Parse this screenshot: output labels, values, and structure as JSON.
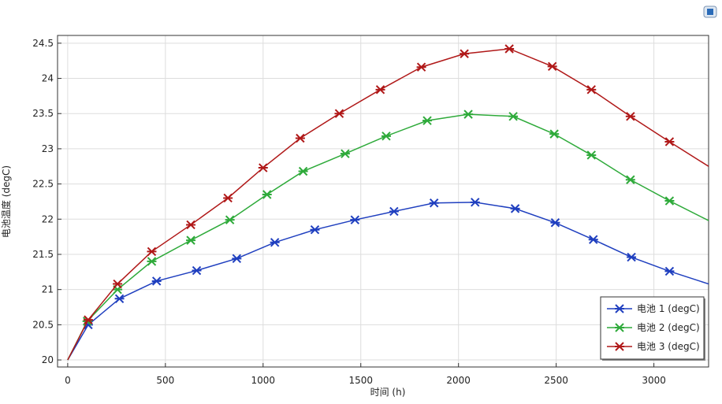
{
  "chart_data": {
    "type": "line",
    "x_label": "时间 (h)",
    "y_label": "电池温度 (degC)",
    "xlim": [
      -52,
      3280
    ],
    "ylim": [
      19.9,
      24.61
    ],
    "xticks": [
      0,
      500,
      1000,
      1500,
      2000,
      2500,
      3000
    ],
    "yticks": [
      20,
      20.5,
      21,
      21.5,
      22,
      22.5,
      23,
      23.5,
      24,
      24.5
    ],
    "grid": true,
    "legend": "lower right",
    "series": [
      {
        "name": "电池 1 (degC)",
        "color": "#1f3fbf",
        "x": [
          0,
          105,
          265,
          455,
          660,
          865,
          1060,
          1265,
          1470,
          1670,
          1875,
          2085,
          2290,
          2495,
          2690,
          2885,
          3080,
          3280
        ],
        "values": [
          20,
          20.5,
          20.87,
          21.12,
          21.27,
          21.44,
          21.67,
          21.85,
          21.99,
          22.11,
          22.23,
          22.24,
          22.15,
          21.95,
          21.71,
          21.46,
          21.26,
          21.08
        ]
      },
      {
        "name": "电池 2 (degC)",
        "color": "#2eaa3a",
        "x": [
          0,
          100,
          255,
          430,
          630,
          830,
          1020,
          1205,
          1420,
          1630,
          1840,
          2050,
          2280,
          2490,
          2680,
          2880,
          3080,
          3280
        ],
        "values": [
          20,
          20.55,
          21.0,
          21.4,
          21.7,
          21.99,
          22.35,
          22.68,
          22.93,
          23.18,
          23.4,
          23.49,
          23.46,
          23.21,
          22.91,
          22.56,
          22.26,
          21.98
        ]
      },
      {
        "name": "电池 3 (degC)",
        "color": "#b01818",
        "x": [
          0,
          105,
          255,
          430,
          630,
          820,
          1000,
          1190,
          1390,
          1600,
          1810,
          2030,
          2260,
          2480,
          2680,
          2880,
          3080,
          3280
        ],
        "values": [
          20,
          20.57,
          21.08,
          21.54,
          21.92,
          22.3,
          22.73,
          23.15,
          23.5,
          23.84,
          24.16,
          24.35,
          24.42,
          24.17,
          23.84,
          23.46,
          23.1,
          22.75
        ]
      }
    ]
  }
}
